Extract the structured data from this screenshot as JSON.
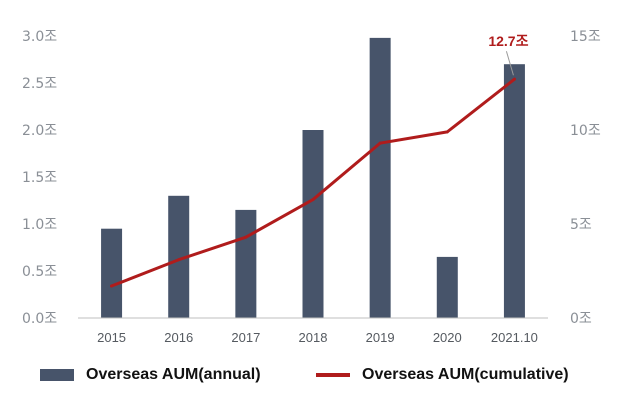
{
  "chart_data": {
    "type": "bar+line",
    "categories": [
      "2015",
      "2016",
      "2017",
      "2018",
      "2019",
      "2020",
      "2021.10"
    ],
    "series": [
      {
        "name": "Overseas AUM(annual)",
        "type": "bar",
        "axis": "left",
        "values": [
          0.95,
          1.3,
          1.15,
          2.0,
          2.98,
          0.65,
          2.7
        ]
      },
      {
        "name": "Overseas AUM(cumulative)",
        "type": "line",
        "axis": "right",
        "values": [
          1.7,
          3.1,
          4.3,
          6.3,
          9.3,
          9.9,
          12.7
        ]
      }
    ],
    "left_axis": {
      "ylim": [
        0,
        3.0
      ],
      "ticks": [
        {
          "value": 0,
          "label": "0.0조"
        },
        {
          "value": 0.5,
          "label": "0.5조"
        },
        {
          "value": 1.0,
          "label": "1.0조"
        },
        {
          "value": 1.5,
          "label": "1.5조"
        },
        {
          "value": 2.0,
          "label": "2.0조"
        },
        {
          "value": 2.5,
          "label": "2.5조"
        },
        {
          "value": 3.0,
          "label": "3.0조"
        }
      ]
    },
    "right_axis": {
      "ylim": [
        0,
        15
      ],
      "ticks": [
        {
          "value": 0,
          "label": "0조"
        },
        {
          "value": 5,
          "label": "5조"
        },
        {
          "value": 10,
          "label": "10조"
        },
        {
          "value": 15,
          "label": "15조"
        }
      ]
    },
    "annotation": {
      "text": "12.7조",
      "category": "2021.10",
      "series": "Overseas AUM(cumulative)"
    },
    "legend_position": "bottom",
    "grid": false,
    "colors": {
      "bar": "#47546a",
      "line": "#b01c1c",
      "axis": "#bfbfbf"
    }
  }
}
